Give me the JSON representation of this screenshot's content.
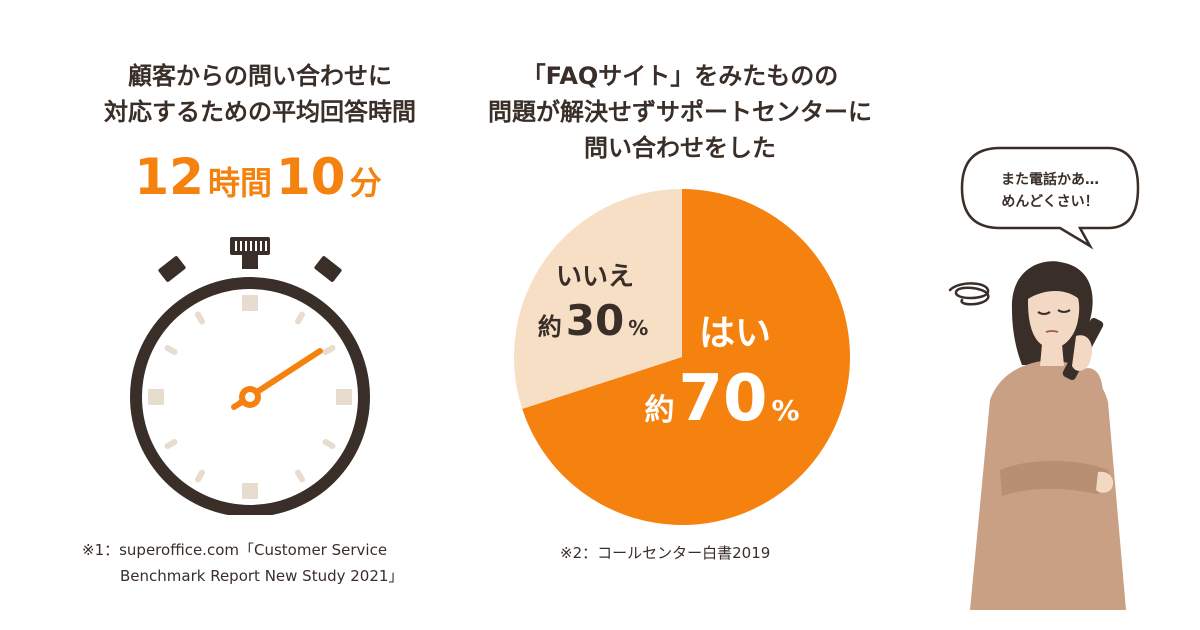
{
  "left": {
    "heading_line1": "顧客からの問い合わせに",
    "heading_line2": "対応するための平均回答時間",
    "time_hours": "12",
    "time_hours_unit": "時間",
    "time_minutes": "10",
    "time_minutes_unit": "分",
    "note_line1": "※1：superoffice.com「Customer Service",
    "note_line2": "Benchmark Report New Study 2021」"
  },
  "middle": {
    "heading_line1": "「FAQサイト」をみたものの",
    "heading_line2": "問題が解決せずサポートセンターに",
    "heading_line3": "問い合わせをした",
    "note": "※2：コールセンター白書2019"
  },
  "chart_data": {
    "type": "pie",
    "slices": [
      {
        "label": "はい",
        "prefix": "約",
        "value": 70,
        "value_text": "70",
        "unit": "%",
        "color": "#f5820f",
        "text_color": "#ffffff"
      },
      {
        "label": "いいえ",
        "prefix": "約",
        "value": 30,
        "value_text": "30",
        "unit": "%",
        "color": "#f7dfc6",
        "text_color": "#3a2e28"
      }
    ]
  },
  "bubble": {
    "line1": "また電話かあ…",
    "line2": "めんどくさい！"
  },
  "colors": {
    "accent": "#f5820f",
    "pale": "#f7dfc6",
    "dark": "#3a2e28",
    "tick": "#e8dccf"
  }
}
